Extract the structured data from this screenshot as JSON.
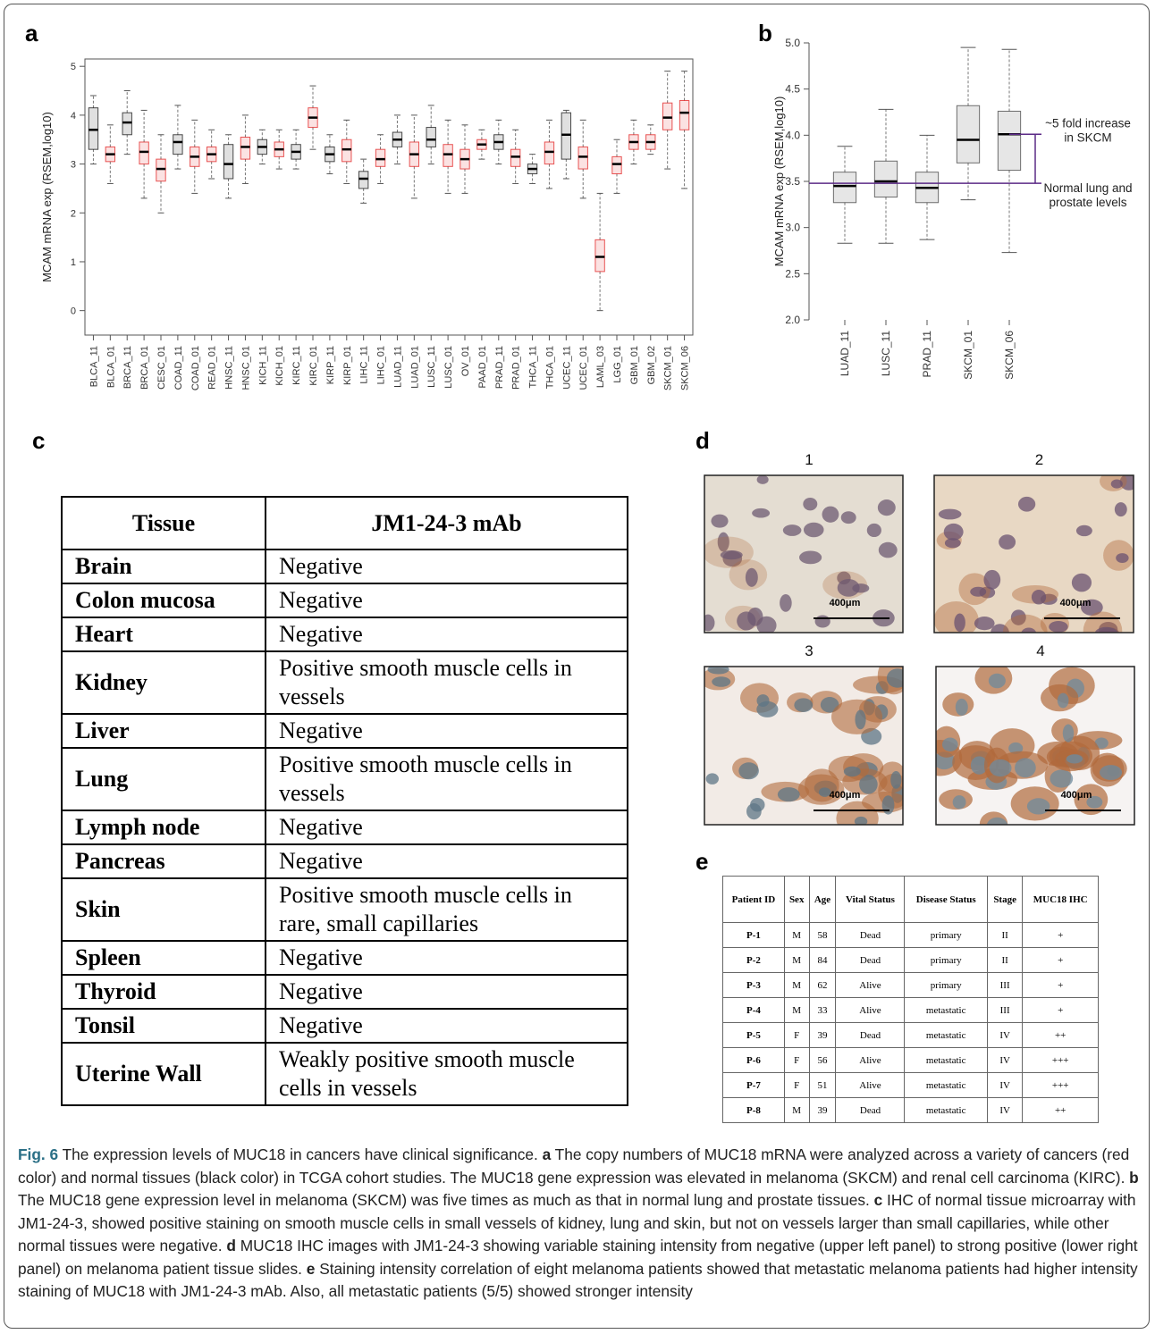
{
  "panel_labels": [
    "a",
    "b",
    "c",
    "d",
    "e"
  ],
  "chart_data": [
    {
      "type": "boxplot",
      "y_label": "MCAM mRNA exp (RSEM,log10)",
      "categories": [
        "BLCA_11",
        "BLCA_01",
        "BRCA_11",
        "BRCA_01",
        "CESC_01",
        "COAD_11",
        "COAD_01",
        "READ_01",
        "HNSC_11",
        "HNSC_01",
        "KICH_11",
        "KICH_01",
        "KIRC_11",
        "KIRC_01",
        "KIRP_11",
        "KIRP_01",
        "LIHC_11",
        "LIHC_01",
        "LUAD_11",
        "LUAD_01",
        "LUSC_11",
        "LUSC_01",
        "OV_01",
        "PAAD_01",
        "PRAD_11",
        "PRAD_01",
        "THCA_11",
        "THCA_01",
        "UCEC_11",
        "UCEC_01",
        "LAML_03",
        "LGG_01",
        "GBM_01",
        "GBM_02",
        "SKCM_01",
        "SKCM_06"
      ],
      "whislo": [
        3.0,
        2.6,
        3.2,
        2.3,
        2.0,
        2.9,
        2.4,
        2.7,
        2.3,
        2.6,
        3.0,
        2.9,
        2.9,
        3.3,
        2.8,
        2.6,
        2.2,
        2.6,
        3.0,
        2.3,
        3.0,
        2.4,
        2.4,
        3.1,
        3.0,
        2.6,
        2.6,
        2.5,
        2.7,
        2.3,
        0.0,
        2.4,
        3.0,
        3.2,
        2.9,
        2.5
      ],
      "q1": [
        3.3,
        3.05,
        3.6,
        3.0,
        2.65,
        3.2,
        2.95,
        3.05,
        2.7,
        3.1,
        3.2,
        3.15,
        3.1,
        3.75,
        3.05,
        3.05,
        2.5,
        2.95,
        3.35,
        2.95,
        3.35,
        2.95,
        2.9,
        3.3,
        3.3,
        2.95,
        2.8,
        3.0,
        3.1,
        2.9,
        0.8,
        2.8,
        3.3,
        3.3,
        3.7,
        3.7
      ],
      "median": [
        3.7,
        3.2,
        3.85,
        3.25,
        2.9,
        3.45,
        3.15,
        3.2,
        3.0,
        3.35,
        3.35,
        3.3,
        3.25,
        3.95,
        3.2,
        3.3,
        2.7,
        3.1,
        3.5,
        3.2,
        3.5,
        3.2,
        3.1,
        3.4,
        3.45,
        3.15,
        2.9,
        3.25,
        3.6,
        3.15,
        1.1,
        3.0,
        3.45,
        3.45,
        3.95,
        4.05
      ],
      "q3": [
        4.15,
        3.35,
        4.05,
        3.45,
        3.1,
        3.6,
        3.35,
        3.35,
        3.4,
        3.55,
        3.5,
        3.45,
        3.4,
        4.15,
        3.35,
        3.5,
        2.85,
        3.3,
        3.65,
        3.45,
        3.75,
        3.4,
        3.3,
        3.5,
        3.6,
        3.3,
        3.0,
        3.45,
        4.05,
        3.35,
        1.45,
        3.15,
        3.6,
        3.6,
        4.25,
        4.3
      ],
      "whishi": [
        4.4,
        3.8,
        4.5,
        4.1,
        3.6,
        4.2,
        3.9,
        3.7,
        3.6,
        4.0,
        3.7,
        3.7,
        3.7,
        4.6,
        3.6,
        3.9,
        3.1,
        3.6,
        4.0,
        4.0,
        4.2,
        3.9,
        3.8,
        3.7,
        3.9,
        3.7,
        3.2,
        3.9,
        4.1,
        3.9,
        2.4,
        3.5,
        3.9,
        3.8,
        4.9,
        4.9
      ],
      "colors": [
        "#000000",
        "#e01010",
        "#000000",
        "#e01010",
        "#e01010",
        "#000000",
        "#e01010",
        "#e01010",
        "#000000",
        "#e01010",
        "#000000",
        "#e01010",
        "#000000",
        "#e01010",
        "#000000",
        "#e01010",
        "#000000",
        "#e01010",
        "#000000",
        "#e01010",
        "#000000",
        "#e01010",
        "#e01010",
        "#e01010",
        "#000000",
        "#e01010",
        "#000000",
        "#e01010",
        "#000000",
        "#e01010",
        "#e01010",
        "#e01010",
        "#e01010",
        "#e01010",
        "#e01010",
        "#e01010"
      ],
      "ylim": [
        -0.5,
        5.15
      ],
      "yticks": [
        0,
        1,
        2,
        3,
        4,
        5
      ]
    },
    {
      "type": "boxplot",
      "y_label": "MCAM mRNA exp (RSEM,log10)",
      "categories": [
        "LUAD_11",
        "LUSC_11",
        "PRAD_11",
        "SKCM_01",
        "SKCM_06"
      ],
      "whislo": [
        2.83,
        2.83,
        2.87,
        3.3,
        2.73
      ],
      "q1": [
        3.27,
        3.33,
        3.27,
        3.7,
        3.62
      ],
      "median": [
        3.45,
        3.5,
        3.43,
        3.95,
        4.01
      ],
      "q3": [
        3.6,
        3.72,
        3.6,
        4.32,
        4.26
      ],
      "whishi": [
        3.88,
        4.28,
        4.0,
        4.95,
        4.93
      ],
      "colors": [
        "#333333",
        "#333333",
        "#333333",
        "#333333",
        "#333333"
      ],
      "ylim": [
        2.0,
        5.0
      ],
      "yticks": [
        {
          "value": 2,
          "label": "2.0"
        },
        {
          "value": 2.5,
          "label": "2.5"
        },
        {
          "value": 3,
          "label": "3.0"
        },
        {
          "value": 3.5,
          "label": "3.5"
        },
        {
          "value": 4,
          "label": "4.0"
        },
        {
          "value": 4.5,
          "label": "4.5"
        },
        {
          "value": 5,
          "label": "5.0"
        }
      ],
      "reference_color": "#5b2a86",
      "reference_lines": [
        {
          "value": 4.01,
          "label": [
            "~5 fold increase",
            "in SKCM"
          ]
        },
        {
          "value": 3.48,
          "label": [
            "Normal lung and",
            "prostate levels"
          ]
        }
      ]
    }
  ],
  "table_c": {
    "header": [
      "Tissue",
      "JM1-24-3 mAb"
    ],
    "rows": [
      [
        "Brain",
        "Negative"
      ],
      [
        "Colon mucosa",
        "Negative"
      ],
      [
        "Heart",
        "Negative"
      ],
      [
        "Kidney",
        "Positive smooth muscle cells in vessels"
      ],
      [
        "Liver",
        "Negative"
      ],
      [
        "Lung",
        "Positive smooth muscle cells in vessels"
      ],
      [
        "Lymph node",
        "Negative"
      ],
      [
        "Pancreas",
        "Negative"
      ],
      [
        "Skin",
        "Positive smooth muscle cells in rare, small capillaries"
      ],
      [
        "Spleen",
        "Negative"
      ],
      [
        "Thyroid",
        "Negative"
      ],
      [
        "Tonsil",
        "Negative"
      ],
      [
        "Uterine Wall",
        "Weakly positive smooth muscle cells in vessels"
      ]
    ]
  },
  "images_d": [
    {
      "label": "1",
      "scale": "400μm"
    },
    {
      "label": "2",
      "scale": "400μm"
    },
    {
      "label": "3",
      "scale": "400μm"
    },
    {
      "label": "4",
      "scale": "400μm"
    }
  ],
  "table_e": {
    "header": [
      "Patient ID",
      "Sex",
      "Age",
      "Vital Status",
      "Disease Status",
      "Stage",
      "MUC18 IHC"
    ],
    "rows": [
      [
        "P-1",
        "M",
        58,
        "Dead",
        "primary",
        "II",
        "+"
      ],
      [
        "P-2",
        "M",
        84,
        "Dead",
        "primary",
        "II",
        "+"
      ],
      [
        "P-3",
        "M",
        62,
        "Alive",
        "primary",
        "III",
        "+"
      ],
      [
        "P-4",
        "M",
        33,
        "Alive",
        "metastatic",
        "III",
        "+"
      ],
      [
        "P-5",
        "F",
        39,
        "Dead",
        "metastatic",
        "IV",
        "++"
      ],
      [
        "P-6",
        "F",
        56,
        "Alive",
        "metastatic",
        "IV",
        "+++"
      ],
      [
        "P-7",
        "F",
        51,
        "Alive",
        "metastatic",
        "IV",
        "+++"
      ],
      [
        "P-8",
        "M",
        39,
        "Dead",
        "metastatic",
        "IV",
        "++"
      ]
    ]
  },
  "caption": [
    {
      "text": "Fig. 6",
      "bold": true
    },
    {
      "text": " The expression levels of MUC18 in cancers have clinical significance. "
    },
    {
      "text": "a",
      "bold": true
    },
    {
      "text": " The copy numbers of MUC18 mRNA were analyzed across a variety of cancers (red color) and normal tissues (black color) in TCGA cohort studies. The MUC18 gene expression was elevated in melanoma (SKCM) and renal cell carcinoma (KIRC). "
    },
    {
      "text": "b",
      "bold": true
    },
    {
      "text": " The MUC18 gene expression level in melanoma (SKCM) was five times as much as that in normal lung and prostate tissues. "
    },
    {
      "text": "c",
      "bold": true
    },
    {
      "text": " IHC of normal tissue microarray with JM1-24-3, showed positive staining on smooth muscle cells in small vessels of kidney, lung and skin, but not on vessels larger than small capillaries, while other normal tissues were negative. "
    },
    {
      "text": "d",
      "bold": true
    },
    {
      "text": " MUC18 IHC images with JM1-24-3 showing variable staining intensity from negative (upper left panel) to strong positive (lower right panel) on melanoma patient tissue slides. "
    },
    {
      "text": "e",
      "bold": true
    },
    {
      "text": " Staining intensity correlation of eight melanoma patients showed that metastatic melanoma patients had higher intensity staining of MUC18 with JM1-24-3 mAb. Also, all metastatic patients (5/5) showed stronger intensity"
    }
  ]
}
